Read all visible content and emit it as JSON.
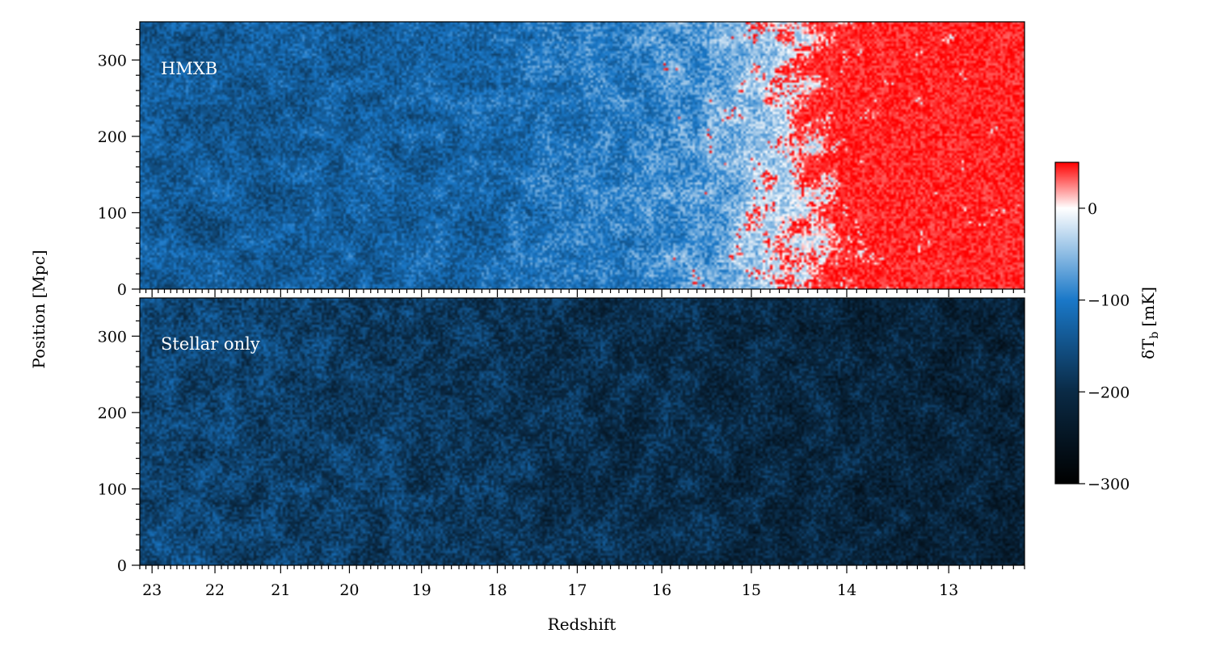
{
  "chart_data": {
    "type": "heatmap",
    "xlabel": "Redshift",
    "ylabel": "Position [Mpc]",
    "colorbar_label": "δT",
    "colorbar_label_sub": "b",
    "colorbar_label_unit": "[mK]",
    "colorbar_ticks": [
      0,
      -100,
      -200,
      -300
    ],
    "colorbar_tick_labels": [
      "0",
      "−100",
      "−200",
      "−300"
    ],
    "colorbar_range": [
      -300,
      50
    ],
    "colormap": [
      "#000000",
      "#0a2a45",
      "#1a78c8",
      "#ffffff",
      "#ff0000"
    ],
    "colormap_stops": [
      -300,
      -200,
      -100,
      0,
      50
    ],
    "x_ticks": [
      23,
      22,
      21,
      20,
      19,
      18,
      17,
      16,
      15,
      14,
      13
    ],
    "x_tick_labels": [
      "23",
      "22",
      "21",
      "20",
      "19",
      "18",
      "17",
      "16",
      "15",
      "14",
      "13"
    ],
    "x_range": [
      23.2,
      12.3
    ],
    "y_ticks": [
      0,
      100,
      200,
      300
    ],
    "y_tick_labels": [
      "0",
      "100",
      "200",
      "300"
    ],
    "y_range": [
      0,
      350
    ],
    "panels": [
      {
        "name": "HMXB",
        "label": "HMXB",
        "profile_redshift": [
          23.2,
          19,
          17.5,
          16.5,
          15.5,
          15,
          14.3,
          13.8,
          12.3
        ],
        "profile_dTb": [
          -140,
          -130,
          -110,
          -95,
          -75,
          -40,
          0,
          25,
          35
        ],
        "hot_fraction": [
          0,
          0,
          0.01,
          0.03,
          0.12,
          0.3,
          0.5,
          0.8,
          0.9
        ]
      },
      {
        "name": "Stellar only",
        "label": "Stellar only",
        "profile_redshift": [
          23.2,
          20,
          17,
          15,
          13,
          12.3
        ],
        "profile_dTb": [
          -160,
          -175,
          -190,
          -205,
          -215,
          -220
        ],
        "hot_fraction": [
          0,
          0,
          0,
          0,
          0,
          0
        ]
      }
    ]
  }
}
